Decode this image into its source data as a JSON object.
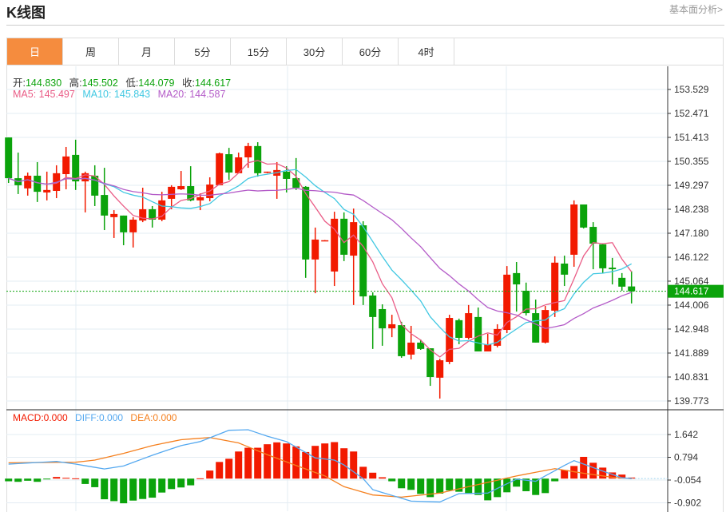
{
  "header": {
    "title": "K线图",
    "link": "基本面分析>"
  },
  "tabs": [
    {
      "label": "日",
      "active": true
    },
    {
      "label": "周"
    },
    {
      "label": "月"
    },
    {
      "label": "5分"
    },
    {
      "label": "15分"
    },
    {
      "label": "30分"
    },
    {
      "label": "60分"
    },
    {
      "label": "4时"
    }
  ],
  "ohlc_legend": {
    "open_label": "开:",
    "open": "144.830",
    "high_label": "高:",
    "high": "145.502",
    "low_label": "低:",
    "low": "144.079",
    "close_label": "收:",
    "close": "144.617"
  },
  "ma_legend": {
    "ma5": "MA5: 145.497",
    "ma10": "MA10: 145.843",
    "ma20": "MA20: 144.587"
  },
  "macd_legend": {
    "macd": "MACD:0.000",
    "diff": "DIFF:0.000",
    "dea": "DEA:0.000"
  },
  "current_price": "144.617",
  "colors": {
    "up": "#F21A00",
    "down": "#0BA30B",
    "ma5": "#EA5C86",
    "ma10": "#41C8E2",
    "ma20": "#B45CC8",
    "diff": "#55A9F0",
    "dea": "#F5801F",
    "accent": "#F58C3E"
  },
  "chart_data": {
    "type": "candlestick",
    "price_axis": {
      "ticks": [
        "153.529",
        "152.471",
        "151.413",
        "150.355",
        "149.297",
        "148.238",
        "147.180",
        "146.122",
        "145.064",
        "144.006",
        "142.948",
        "141.889",
        "140.831",
        "139.773"
      ],
      "range": [
        139.773,
        153.529
      ]
    },
    "candles": [
      [
        151.41,
        151.41,
        149.4,
        149.61
      ],
      [
        149.61,
        150.74,
        148.91,
        149.3
      ],
      [
        149.16,
        149.86,
        148.84,
        149.72
      ],
      [
        149.72,
        150.32,
        148.56,
        149.01
      ],
      [
        148.98,
        149.9,
        148.63,
        149.09
      ],
      [
        149.05,
        150.18,
        148.73,
        149.83
      ],
      [
        149.79,
        150.99,
        149.12,
        150.57
      ],
      [
        150.64,
        151.31,
        149.09,
        149.47
      ],
      [
        149.47,
        149.9,
        148.1,
        149.83
      ],
      [
        149.72,
        150.18,
        148.38,
        148.84
      ],
      [
        148.87,
        150.07,
        147.32,
        147.96
      ],
      [
        147.89,
        148.2,
        146.97,
        148.03
      ],
      [
        147.96,
        147.96,
        146.65,
        147.22
      ],
      [
        147.22,
        147.89,
        146.55,
        147.78
      ],
      [
        147.74,
        149.19,
        147.67,
        148.24
      ],
      [
        148.24,
        148.38,
        147.43,
        147.78
      ],
      [
        147.78,
        149.01,
        147.71,
        148.63
      ],
      [
        148.7,
        149.3,
        148.24,
        149.23
      ],
      [
        149.12,
        149.93,
        149.09,
        149.26
      ],
      [
        149.26,
        150.14,
        148.59,
        148.63
      ],
      [
        148.63,
        148.94,
        148.2,
        148.77
      ],
      [
        148.73,
        149.65,
        148.59,
        149.33
      ],
      [
        149.3,
        150.74,
        149.3,
        150.71
      ],
      [
        150.67,
        150.95,
        149.54,
        149.86
      ],
      [
        149.83,
        150.74,
        149.83,
        150.53
      ],
      [
        150.53,
        151.17,
        150.07,
        151.03
      ],
      [
        151.03,
        151.2,
        149.68,
        149.83
      ],
      [
        149.86,
        149.9,
        149.83,
        149.9
      ],
      [
        149.72,
        150.32,
        148.7,
        149.97
      ],
      [
        149.9,
        150.14,
        148.98,
        149.58
      ],
      [
        149.61,
        150.5,
        149.09,
        149.19
      ],
      [
        149.23,
        149.26,
        145.21,
        146.02
      ],
      [
        146.02,
        147.43,
        144.53,
        146.9
      ],
      [
        146.86,
        146.88,
        146.83,
        146.87
      ],
      [
        145.49,
        148.13,
        144.85,
        147.82
      ],
      [
        147.82,
        148.1,
        145.95,
        146.23
      ],
      [
        146.19,
        148.27,
        144.01,
        147.67
      ],
      [
        147.53,
        147.71,
        144.01,
        144.39
      ],
      [
        144.43,
        144.57,
        142.07,
        143.48
      ],
      [
        143.83,
        144.04,
        142.21,
        142.98
      ],
      [
        142.98,
        143.58,
        142.59,
        143.16
      ],
      [
        143.12,
        143.27,
        141.68,
        141.75
      ],
      [
        141.82,
        143.09,
        141.61,
        142.35
      ],
      [
        142.35,
        142.49,
        142.03,
        142.07
      ],
      [
        142.1,
        142.1,
        140.44,
        140.83
      ],
      [
        140.8,
        141.64,
        139.88,
        141.57
      ],
      [
        141.5,
        143.58,
        141.4,
        143.44
      ],
      [
        143.34,
        143.41,
        142.28,
        142.56
      ],
      [
        142.56,
        144.01,
        142.49,
        143.65
      ],
      [
        143.48,
        143.9,
        141.96,
        141.96
      ],
      [
        141.96,
        142.74,
        141.96,
        142.28
      ],
      [
        142.21,
        143.16,
        142.14,
        142.95
      ],
      [
        142.91,
        145.73,
        142.77,
        145.35
      ],
      [
        145.42,
        145.91,
        143.72,
        144.92
      ],
      [
        144.64,
        145.0,
        143.55,
        143.65
      ],
      [
        143.65,
        144.25,
        142.35,
        142.35
      ],
      [
        142.35,
        143.97,
        142.31,
        143.79
      ],
      [
        143.76,
        146.16,
        143.48,
        145.88
      ],
      [
        145.84,
        146.19,
        144.85,
        145.35
      ],
      [
        146.23,
        148.63,
        145.7,
        148.45
      ],
      [
        148.45,
        148.45,
        147.39,
        147.43
      ],
      [
        147.46,
        147.67,
        145.59,
        146.72
      ],
      [
        146.69,
        146.72,
        145.42,
        145.63
      ],
      [
        145.66,
        146.09,
        144.92,
        145.59
      ],
      [
        145.21,
        145.42,
        144.64,
        144.82
      ],
      [
        144.83,
        145.502,
        144.079,
        144.617
      ]
    ],
    "macd_axis": {
      "ticks": [
        "1.642",
        "0.794",
        "-0.054",
        "-0.902"
      ]
    },
    "macd_hist": [
      -0.1,
      -0.12,
      -0.08,
      -0.12,
      -0.03,
      0.06,
      0.03,
      0.01,
      -0.2,
      -0.32,
      -0.77,
      -0.84,
      -0.92,
      -0.82,
      -0.76,
      -0.71,
      -0.52,
      -0.39,
      -0.33,
      -0.25,
      0.01,
      0.3,
      0.62,
      0.74,
      1.01,
      1.15,
      1.15,
      1.28,
      1.35,
      1.31,
      1.2,
      0.99,
      1.22,
      1.31,
      1.36,
      1.13,
      1.01,
      0.44,
      0.22,
      0.05,
      -0.1,
      -0.36,
      -0.42,
      -0.57,
      -0.69,
      -0.56,
      -0.44,
      -0.49,
      -0.57,
      -0.61,
      -0.81,
      -0.69,
      -0.51,
      -0.3,
      -0.47,
      -0.61,
      -0.54,
      -0.1,
      0.32,
      0.47,
      0.81,
      0.59,
      0.41,
      0.23,
      0.15,
      0.04
    ],
    "diff_keypoints": [
      [
        1,
        0.54
      ],
      [
        6,
        0.64
      ],
      [
        8,
        0.54
      ],
      [
        11,
        0.36
      ],
      [
        13,
        0.47
      ],
      [
        16,
        0.87
      ],
      [
        19,
        1.23
      ],
      [
        21,
        1.38
      ],
      [
        24,
        1.8
      ],
      [
        26,
        1.82
      ],
      [
        28,
        1.58
      ],
      [
        30,
        1.38
      ],
      [
        33,
        0.77
      ],
      [
        35,
        0.69
      ],
      [
        36,
        0.51
      ],
      [
        38,
        0
      ],
      [
        39,
        -0.41
      ],
      [
        43,
        -0.84
      ],
      [
        46,
        -0.87
      ],
      [
        48,
        -0.56
      ],
      [
        51,
        -0.54
      ],
      [
        54,
        -0.02
      ],
      [
        56,
        -0.1
      ],
      [
        57,
        0.1
      ],
      [
        59,
        0.49
      ],
      [
        60,
        0.67
      ],
      [
        63,
        0.28
      ],
      [
        65,
        0.03
      ],
      [
        66,
        0
      ]
    ],
    "dea_keypoints": [
      [
        1,
        0.59
      ],
      [
        8,
        0.61
      ],
      [
        10,
        0.69
      ],
      [
        13,
        0.94
      ],
      [
        16,
        1.23
      ],
      [
        19,
        1.45
      ],
      [
        22,
        1.53
      ],
      [
        25,
        1.33
      ],
      [
        28,
        0.89
      ],
      [
        31,
        0.49
      ],
      [
        34,
        0.1
      ],
      [
        36,
        -0.3
      ],
      [
        39,
        -0.61
      ],
      [
        42,
        -0.69
      ],
      [
        46,
        -0.54
      ],
      [
        49,
        -0.3
      ],
      [
        54,
        0.1
      ],
      [
        58,
        0.37
      ],
      [
        61,
        0.2
      ],
      [
        64,
        0.05
      ],
      [
        66,
        0
      ]
    ]
  }
}
